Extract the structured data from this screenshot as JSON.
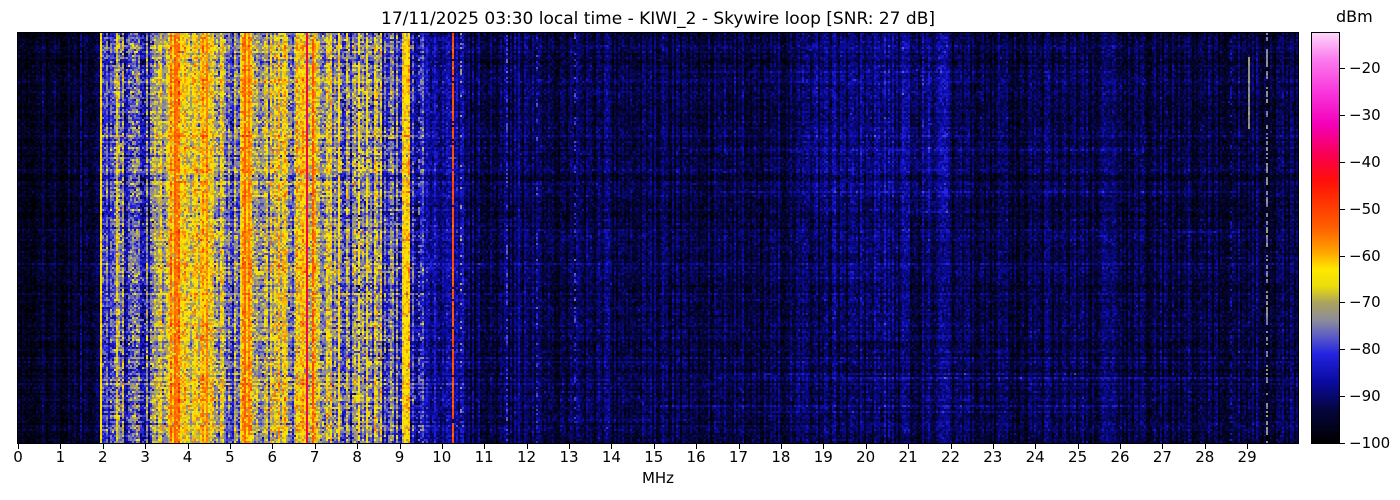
{
  "title": "17/11/2025 03:30 local time - KIWI_2 - Skywire loop [SNR: 27 dB]",
  "chart_data": {
    "type": "heatmap",
    "subtype": "radio-spectrogram-waterfall",
    "title": "17/11/2025 03:30 local time - KIWI_2 - Skywire loop [SNR: 27 dB]",
    "station": "KIWI_2",
    "antenna": "Skywire loop",
    "snr_db": 27,
    "timestamp_local": "17/11/2025 03:30",
    "xlabel": "MHz",
    "x_range": [
      0,
      30.2
    ],
    "x_ticks": [
      0,
      1,
      2,
      3,
      4,
      5,
      6,
      7,
      8,
      9,
      10,
      11,
      12,
      13,
      14,
      15,
      16,
      17,
      18,
      19,
      20,
      21,
      22,
      23,
      24,
      25,
      26,
      27,
      28,
      29
    ],
    "value_range": [
      -100,
      -12.5
    ],
    "colorbar": {
      "label": "dBm",
      "ticks": [
        -20,
        -30,
        -40,
        -50,
        -60,
        -70,
        -80,
        -90,
        -100
      ]
    },
    "palette": [
      {
        "v": -100,
        "rgb": [
          0,
          0,
          0
        ]
      },
      {
        "v": -93,
        "rgb": [
          5,
          5,
          60
        ]
      },
      {
        "v": -87,
        "rgb": [
          10,
          10,
          160
        ]
      },
      {
        "v": -81,
        "rgb": [
          35,
          35,
          225
        ]
      },
      {
        "v": -78,
        "rgb": [
          80,
          80,
          205
        ]
      },
      {
        "v": -74,
        "rgb": [
          138,
          138,
          160
        ]
      },
      {
        "v": -70,
        "rgb": [
          172,
          163,
          92
        ]
      },
      {
        "v": -66.5,
        "rgb": [
          235,
          222,
          10
        ]
      },
      {
        "v": -63,
        "rgb": [
          255,
          232,
          0
        ]
      },
      {
        "v": -59,
        "rgb": [
          255,
          160,
          0
        ]
      },
      {
        "v": -54,
        "rgb": [
          255,
          95,
          0
        ]
      },
      {
        "v": -49,
        "rgb": [
          255,
          55,
          0
        ]
      },
      {
        "v": -44,
        "rgb": [
          255,
          15,
          10
        ]
      },
      {
        "v": -39,
        "rgb": [
          250,
          0,
          75
        ]
      },
      {
        "v": -32,
        "rgb": [
          244,
          0,
          185
        ]
      },
      {
        "v": -25,
        "rgb": [
          248,
          55,
          220
        ]
      },
      {
        "v": -18,
        "rgb": [
          251,
          125,
          238
        ]
      },
      {
        "v": -12.5,
        "rgb": [
          253,
          214,
          250
        ]
      }
    ],
    "grid": {
      "cols": 640,
      "rows": 205
    },
    "seed": 1234567,
    "bands": [
      {
        "f0": 0.0,
        "f1": 1.45,
        "base": -95.5,
        "var": 4.0
      },
      {
        "f0": 1.45,
        "f1": 1.95,
        "base": -94.5,
        "var": 4.5
      },
      {
        "f0": 1.95,
        "f1": 2.28,
        "base": -82,
        "var": 7
      },
      {
        "f0": 2.28,
        "f1": 2.5,
        "base": -73,
        "var": 9
      },
      {
        "f0": 2.5,
        "f1": 3.2,
        "base": -80,
        "var": 9
      },
      {
        "f0": 3.2,
        "f1": 3.6,
        "base": -68,
        "var": 7
      },
      {
        "f0": 3.6,
        "f1": 3.8,
        "base": -60,
        "var": 7
      },
      {
        "f0": 3.8,
        "f1": 4.3,
        "base": -67,
        "var": 7
      },
      {
        "f0": 4.3,
        "f1": 4.6,
        "base": -63,
        "var": 7
      },
      {
        "f0": 4.6,
        "f1": 4.85,
        "base": -71,
        "var": 8
      },
      {
        "f0": 4.85,
        "f1": 5.25,
        "base": -77,
        "var": 8
      },
      {
        "f0": 5.25,
        "f1": 5.5,
        "base": -61,
        "var": 6
      },
      {
        "f0": 5.5,
        "f1": 5.95,
        "base": -73,
        "var": 8
      },
      {
        "f0": 5.95,
        "f1": 6.35,
        "base": -67,
        "var": 8
      },
      {
        "f0": 6.35,
        "f1": 6.55,
        "base": -74,
        "var": 8
      },
      {
        "f0": 6.55,
        "f1": 7.1,
        "base": -63,
        "var": 7
      },
      {
        "f0": 7.1,
        "f1": 7.45,
        "base": -71,
        "var": 8
      },
      {
        "f0": 7.45,
        "f1": 8.1,
        "base": -77,
        "var": 9
      },
      {
        "f0": 8.1,
        "f1": 8.6,
        "base": -73,
        "var": 9
      },
      {
        "f0": 8.6,
        "f1": 9.05,
        "base": -80,
        "var": 8
      },
      {
        "f0": 9.05,
        "f1": 9.25,
        "base": -66,
        "var": 7
      },
      {
        "f0": 9.25,
        "f1": 9.6,
        "base": -83,
        "var": 7
      },
      {
        "f0": 9.6,
        "f1": 10.55,
        "base": -87,
        "var": 5
      },
      {
        "f0": 10.55,
        "f1": 14.0,
        "base": -92.5,
        "var": 4.5
      },
      {
        "f0": 14.0,
        "f1": 18.5,
        "base": -93,
        "var": 4.2
      },
      {
        "f0": 18.5,
        "f1": 22.0,
        "base": -92,
        "var": 4.5
      },
      {
        "f0": 22.0,
        "f1": 26.0,
        "base": -93,
        "var": 4.2
      },
      {
        "f0": 26.0,
        "f1": 30.2,
        "base": -93.3,
        "var": 4.2
      }
    ],
    "lines": [
      {
        "f": 1.46,
        "level": -87,
        "p": 0.55,
        "r0": 0,
        "r1": 1
      },
      {
        "f": 1.95,
        "level": -63,
        "p": 1.0,
        "r0": 0,
        "r1": 1
      },
      {
        "f": 2.31,
        "level": -68,
        "p": 0.8,
        "r0": 0,
        "r1": 1
      },
      {
        "f": 3.67,
        "level": -54,
        "p": 0.95,
        "r0": 0,
        "r1": 1
      },
      {
        "f": 3.74,
        "level": -56,
        "p": 0.9,
        "r0": 0,
        "r1": 1
      },
      {
        "f": 4.42,
        "level": -58,
        "p": 0.9,
        "r0": 0,
        "r1": 1
      },
      {
        "f": 5.34,
        "level": -54,
        "p": 0.95,
        "r0": 0,
        "r1": 1
      },
      {
        "f": 5.45,
        "level": -57,
        "p": 0.85,
        "r0": 0,
        "r1": 1
      },
      {
        "f": 6.79,
        "level": -40,
        "p": 1.0,
        "r0": 0,
        "r1": 1
      },
      {
        "f": 6.94,
        "level": -52,
        "p": 0.85,
        "r0": 0,
        "r1": 1
      },
      {
        "f": 7.55,
        "level": -63,
        "p": 0.9,
        "r0": 0,
        "r1": 1
      },
      {
        "f": 8.0,
        "level": -64,
        "p": 0.85,
        "r0": 0,
        "r1": 1
      },
      {
        "f": 8.22,
        "level": -66,
        "p": 0.85,
        "r0": 0,
        "r1": 1
      },
      {
        "f": 9.12,
        "level": -63,
        "p": 0.95,
        "r0": 0,
        "r1": 1
      },
      {
        "f": 9.45,
        "level": -74,
        "p": 0.3,
        "r0": 0,
        "r1": 1
      },
      {
        "f": 10.26,
        "level": -52,
        "p": 0.93,
        "r0": 0,
        "r1": 1
      },
      {
        "f": 10.42,
        "level": -72,
        "p": 0.15,
        "r0": 0,
        "r1": 1
      },
      {
        "f": 11.51,
        "level": -79,
        "p": 0.3,
        "r0": 0,
        "r1": 1
      },
      {
        "f": 11.8,
        "level": -88,
        "p": 0.9,
        "r0": 0,
        "r1": 1
      },
      {
        "f": 12.2,
        "level": -80,
        "p": 0.25,
        "r0": 0,
        "r1": 1
      },
      {
        "f": 13.1,
        "level": -80,
        "p": 0.3,
        "r0": 0,
        "r1": 1
      },
      {
        "f": 15.0,
        "level": -89,
        "p": 0.9,
        "r0": 0,
        "r1": 1
      },
      {
        "f": 28.6,
        "level": -86,
        "p": 0.4,
        "r0": 0,
        "r1": 1
      },
      {
        "f": 29.03,
        "level": -73,
        "p": 1.0,
        "r0": 0.055,
        "r1": 0.23
      },
      {
        "f": 29.2,
        "level": -87,
        "p": 0.4,
        "r0": 0,
        "r1": 1
      },
      {
        "f": 29.45,
        "level": -74,
        "p": 0.5,
        "r0": 0,
        "r1": 1
      }
    ],
    "haze": [
      {
        "f0": 18.6,
        "f1": 21.9,
        "r0": 0.0,
        "r1": 0.45,
        "boost": 3.2
      },
      {
        "f0": 19.2,
        "f1": 21.0,
        "r0": 0.45,
        "r1": 0.75,
        "boost": 1.8
      }
    ],
    "streaks": {
      "count": 26,
      "fmin": 10.3,
      "fmax": 30.2,
      "boost_min": 2.0,
      "boost_max": 5.5,
      "full_band_chance": 0.25
    }
  }
}
